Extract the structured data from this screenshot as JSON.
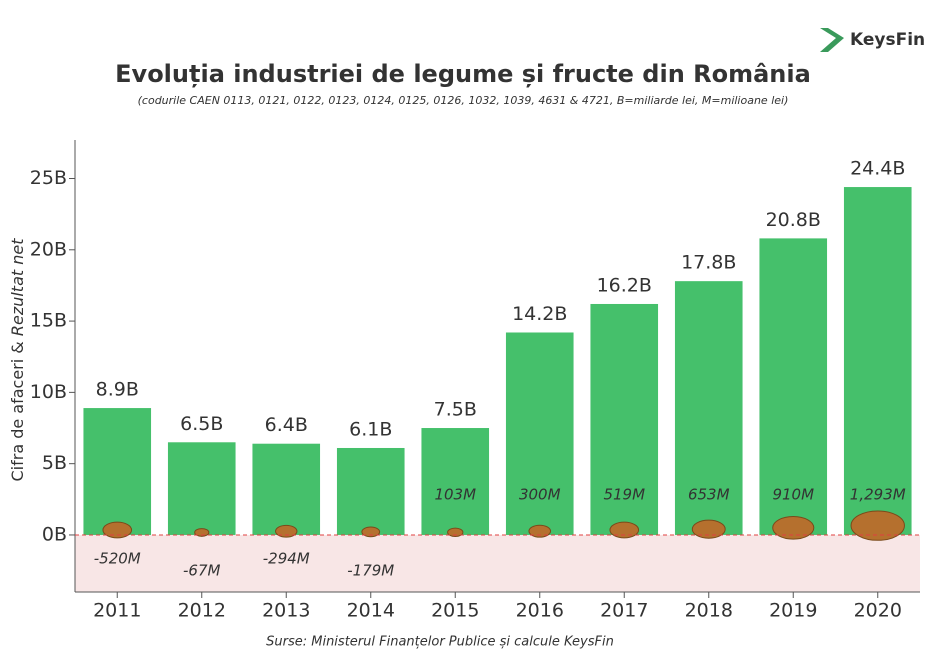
{
  "logo": "KeysFin",
  "chart_data": {
    "type": "bar",
    "title": "Evoluția industriei de legume și fructe din România",
    "subtitle": "(codurile CAEN 0113, 0121, 0122, 0123, 0124, 0125, 0126, 1032, 1039, 4631 & 4721, B=miliarde lei, M=milioane lei)",
    "y_label": "Cifra de afaceri & ",
    "y_label_italic": "Rezultat net",
    "source": "Surse: Ministerul Finanțelor Publice și calcule KeysFin",
    "categories": [
      "2011",
      "2012",
      "2013",
      "2014",
      "2015",
      "2016",
      "2017",
      "2018",
      "2019",
      "2020"
    ],
    "series": [
      {
        "name": "Cifra de afaceri",
        "color": "#45c06b",
        "values": [
          8.9,
          6.5,
          6.4,
          6.1,
          7.5,
          14.2,
          16.2,
          17.8,
          20.8,
          24.4
        ],
        "value_labels": [
          "8.9B",
          "6.5B",
          "6.4B",
          "6.1B",
          "7.5B",
          "14.2B",
          "16.2B",
          "17.8B",
          "20.8B",
          "24.4B"
        ]
      },
      {
        "name": "Rezultat net",
        "color": "#b5702e",
        "values": [
          -0.52,
          -0.067,
          -0.294,
          -0.179,
          0.103,
          0.3,
          0.519,
          0.653,
          0.91,
          1.293
        ],
        "value_labels": [
          "-520M",
          "-67M",
          "-294M",
          "-179M",
          "103M",
          "300M",
          "519M",
          "653M",
          "910M",
          "1,293M"
        ]
      }
    ],
    "ylim": [
      -4,
      27.7
    ],
    "yticks": [
      {
        "value": 0,
        "label": "0B"
      },
      {
        "value": 5,
        "label": "5B"
      },
      {
        "value": 10,
        "label": "10B"
      },
      {
        "value": 15,
        "label": "15B"
      },
      {
        "value": 20,
        "label": "20B"
      },
      {
        "value": 25,
        "label": "25B"
      }
    ]
  }
}
